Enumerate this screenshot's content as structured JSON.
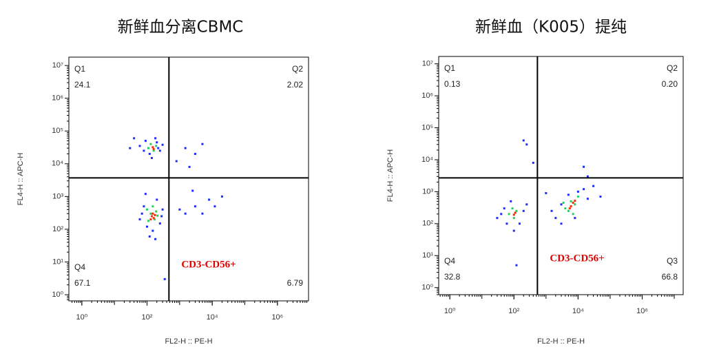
{
  "chart_data": [
    {
      "type": "scatter",
      "title": "新鲜血分离CBMC",
      "x_label": "FL2-H :: PE-H",
      "y_label": "FL4-H :: APC-H",
      "log_x": true,
      "log_y": true,
      "xlim": [
        0.4,
        9000000
      ],
      "ylim": [
        0.65,
        18000000
      ],
      "xticks": [
        {
          "value": 1,
          "label": "10⁰"
        },
        {
          "value": 100,
          "label": "10²"
        },
        {
          "value": 10000,
          "label": "10⁴"
        },
        {
          "value": 1000000,
          "label": "10⁶"
        }
      ],
      "yticks": [
        {
          "value": 1,
          "label": "10⁰"
        },
        {
          "value": 10,
          "label": "10¹"
        },
        {
          "value": 100,
          "label": "10²"
        },
        {
          "value": 1000,
          "label": "10³"
        },
        {
          "value": 10000,
          "label": "10⁴"
        },
        {
          "value": 100000,
          "label": "10⁵"
        },
        {
          "value": 1000000,
          "label": "10⁶"
        },
        {
          "value": 10000000,
          "label": "10⁷"
        }
      ],
      "gates": {
        "x": 470,
        "y": 3700
      },
      "quadrant_names": [
        "Q1",
        "Q2",
        null,
        "Q4"
      ],
      "quadrant_values": [
        24.1,
        2.02,
        6.79,
        67.1
      ],
      "annotation": "CD3-CD56+",
      "series": [
        {
          "color": "#1a2cff",
          "x": [
            60,
            90,
            120,
            200,
            250,
            300,
            80,
            180,
            140,
            220,
            30,
            60,
            80,
            100,
            250,
            300,
            120,
            200,
            70,
            280,
            150,
            90,
            180,
            1500,
            3000,
            800,
            5000,
            2000,
            1500,
            3000,
            8000,
            5000,
            20000,
            2500,
            1000,
            12000,
            40,
            350
          ],
          "y": [
            35000,
            50000,
            20000,
            45000,
            25000,
            38000,
            25000,
            60000,
            15000,
            30000,
            30000,
            200,
            500,
            120,
            150,
            400,
            60,
            800,
            300,
            250,
            90,
            1200,
            50,
            30000,
            20000,
            12000,
            40000,
            8000,
            300,
            500,
            800,
            300,
            1000,
            1500,
            400,
            500,
            60000,
            3
          ]
        },
        {
          "color": "#1fd05a",
          "x": [
            130,
            160,
            110,
            190,
            130,
            170,
            110,
            190,
            150,
            210,
            100
          ],
          "y": [
            40000,
            25000,
            30000,
            35000,
            300,
            200,
            180,
            350,
            500,
            260,
            400
          ]
        },
        {
          "color": "#ff2a00",
          "x": [
            150,
            160,
            140,
            160,
            150,
            175,
            130
          ],
          "y": [
            32000,
            28000,
            250,
            220,
            300,
            270,
            200
          ]
        }
      ]
    },
    {
      "type": "scatter",
      "title": "新鲜血（K005）提纯",
      "x_label": "FL2-H :: PE-H",
      "y_label": "FL4-H :: APC-H",
      "log_x": true,
      "log_y": true,
      "xlim": [
        0.45,
        19000000
      ],
      "ylim": [
        0.6,
        17000000
      ],
      "xticks": [
        {
          "value": 1,
          "label": "10⁰"
        },
        {
          "value": 100,
          "label": "10²"
        },
        {
          "value": 10000,
          "label": "10⁴"
        },
        {
          "value": 1000000,
          "label": "10⁶"
        }
      ],
      "yticks": [
        {
          "value": 1,
          "label": "10⁰"
        },
        {
          "value": 10,
          "label": "10¹"
        },
        {
          "value": 100,
          "label": "10²"
        },
        {
          "value": 1000,
          "label": "10³"
        },
        {
          "value": 10000,
          "label": "10⁴"
        },
        {
          "value": 100000,
          "label": "10⁵"
        },
        {
          "value": 1000000,
          "label": "10⁶"
        },
        {
          "value": 10000000,
          "label": "10⁷"
        }
      ],
      "gates": {
        "x": 540,
        "y": 2700
      },
      "quadrant_names": [
        "Q1",
        "Q2",
        "Q3",
        "Q4"
      ],
      "quadrant_values": [
        0.13,
        0.2,
        66.8,
        32.8
      ],
      "quadrant_value_labels": [
        "0.13",
        "0.20",
        "66.8",
        "32.8"
      ],
      "annotation": "CD3-CD56+",
      "series": [
        {
          "color": "#1a2cff",
          "x": [
            30,
            50,
            80,
            150,
            200,
            60,
            250,
            40,
            100,
            2000,
            3000,
            5000,
            15000,
            20000,
            8000,
            1500,
            30000,
            10000,
            3000,
            50000,
            200,
            250,
            20000,
            15000,
            1000,
            120,
            400
          ],
          "y": [
            150,
            300,
            500,
            100,
            250,
            100,
            400,
            200,
            60,
            150,
            400,
            800,
            1200,
            600,
            150,
            250,
            1500,
            1000,
            100,
            700,
            40000,
            30000,
            3000,
            6000,
            900,
            5,
            8000
          ]
        },
        {
          "color": "#1fd05a",
          "x": [
            70,
            100,
            120,
            90,
            4000,
            6000,
            8000,
            5000,
            10000,
            7000,
            3500
          ],
          "y": [
            200,
            150,
            250,
            300,
            300,
            500,
            400,
            250,
            700,
            200,
            450
          ]
        },
        {
          "color": "#ff2a00",
          "x": [
            100,
            110,
            6000,
            7000,
            5500,
            8000
          ],
          "y": [
            190,
            220,
            350,
            450,
            300,
            520
          ]
        }
      ]
    }
  ]
}
